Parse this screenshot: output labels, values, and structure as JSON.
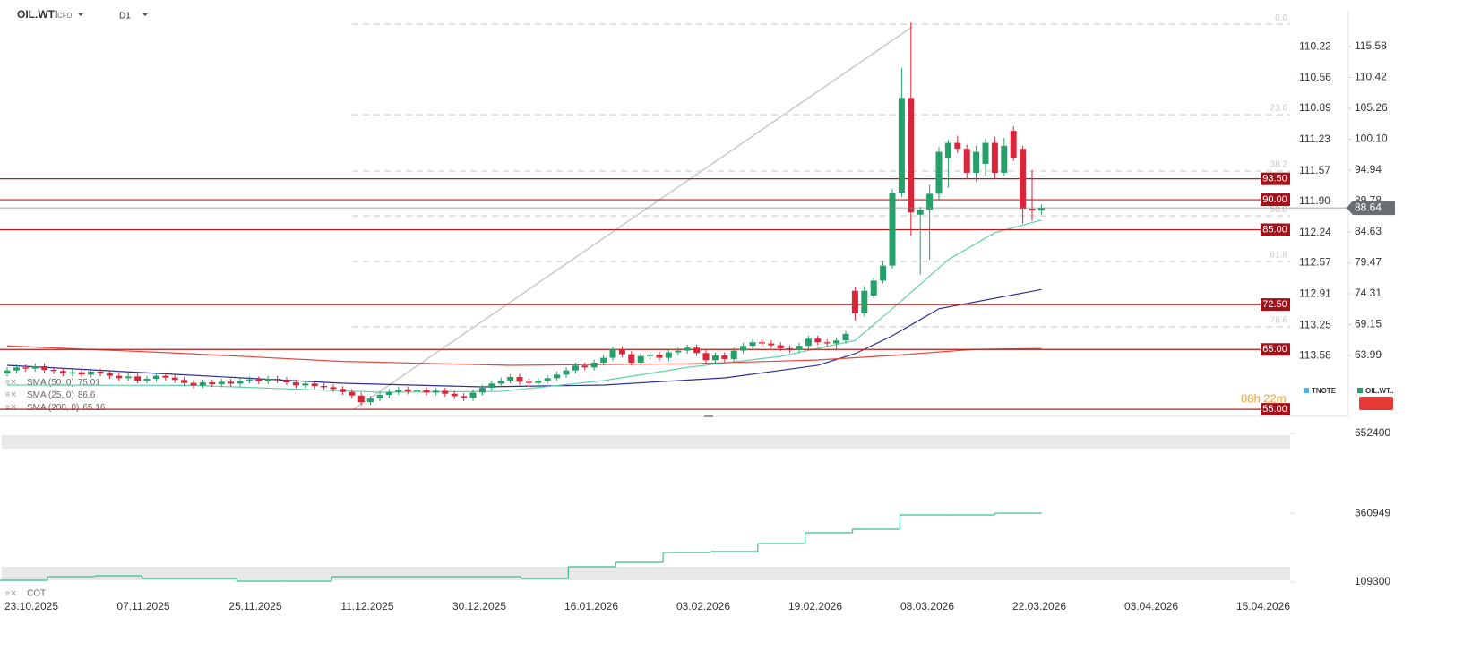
{
  "header": {
    "symbol": "OIL.WTI",
    "market": "CFD",
    "timeframe": "D1"
  },
  "chart_data": [
    {
      "type": "candlestick",
      "x_labels": [
        "23.10.2025",
        "07.11.2025",
        "25.11.2025",
        "11.12.2025",
        "30.12.2025",
        "16.01.2026",
        "03.02.2026",
        "19.02.2026",
        "08.03.2026",
        "22.03.2026",
        "03.04.2026",
        "15.04.2026"
      ],
      "up_color": "#26a069",
      "down_color": "#d9263a",
      "candles": [
        [
          61.0,
          62.0,
          60.5,
          61.5
        ],
        [
          61.5,
          62.5,
          61.0,
          62.0
        ],
        [
          62.0,
          62.5,
          61.3,
          61.8
        ],
        [
          61.8,
          62.7,
          61.3,
          62.2
        ],
        [
          62.2,
          62.7,
          61.1,
          61.6
        ],
        [
          61.6,
          62.1,
          60.9,
          61.4
        ],
        [
          61.4,
          61.9,
          60.5,
          61.0
        ],
        [
          61.0,
          61.7,
          60.5,
          61.2
        ],
        [
          61.2,
          61.7,
          60.3,
          60.8
        ],
        [
          60.8,
          61.8,
          60.3,
          61.3
        ],
        [
          61.3,
          61.8,
          60.5,
          61.0
        ],
        [
          61.0,
          61.5,
          60.1,
          60.6
        ],
        [
          60.6,
          61.1,
          59.7,
          60.2
        ],
        [
          60.2,
          61.0,
          59.7,
          60.5
        ],
        [
          60.5,
          61.0,
          59.3,
          59.8
        ],
        [
          59.8,
          60.6,
          59.3,
          60.1
        ],
        [
          60.1,
          61.1,
          59.6,
          60.6
        ],
        [
          60.6,
          61.1,
          59.8,
          60.3
        ],
        [
          60.3,
          60.8,
          59.4,
          59.9
        ],
        [
          59.9,
          60.4,
          58.9,
          59.4
        ],
        [
          59.4,
          59.9,
          58.5,
          59.0
        ],
        [
          59.0,
          60.0,
          58.5,
          59.5
        ],
        [
          59.5,
          60.0,
          58.7,
          59.2
        ],
        [
          59.2,
          60.1,
          58.7,
          59.6
        ],
        [
          59.6,
          60.1,
          58.8,
          59.3
        ],
        [
          59.3,
          60.3,
          58.8,
          59.8
        ],
        [
          59.8,
          60.5,
          59.3,
          60.0
        ],
        [
          60.0,
          60.5,
          59.2,
          59.7
        ],
        [
          59.7,
          60.6,
          59.2,
          60.1
        ],
        [
          60.1,
          60.6,
          59.4,
          59.9
        ],
        [
          59.9,
          60.4,
          59.0,
          59.5
        ],
        [
          59.5,
          60.0,
          58.5,
          59.0
        ],
        [
          59.0,
          59.8,
          58.5,
          59.3
        ],
        [
          59.3,
          59.8,
          58.4,
          58.9
        ],
        [
          58.9,
          59.4,
          58.2,
          58.7
        ],
        [
          58.7,
          59.2,
          57.9,
          58.4
        ],
        [
          58.4,
          58.9,
          57.4,
          57.9
        ],
        [
          57.9,
          58.4,
          56.8,
          57.3
        ],
        [
          57.3,
          57.8,
          55.7,
          56.2
        ],
        [
          56.2,
          57.3,
          55.7,
          56.8
        ],
        [
          56.8,
          57.9,
          56.3,
          57.4
        ],
        [
          57.4,
          58.4,
          56.9,
          57.9
        ],
        [
          57.9,
          58.8,
          57.4,
          58.3
        ],
        [
          58.3,
          58.8,
          57.5,
          58.0
        ],
        [
          58.0,
          58.7,
          57.5,
          58.2
        ],
        [
          58.2,
          58.7,
          57.3,
          57.8
        ],
        [
          57.8,
          58.6,
          57.3,
          58.1
        ],
        [
          58.1,
          58.6,
          57.1,
          57.6
        ],
        [
          57.6,
          58.1,
          56.7,
          57.2
        ],
        [
          57.2,
          57.7,
          56.4,
          56.9
        ],
        [
          56.9,
          58.3,
          56.4,
          57.8
        ],
        [
          57.8,
          59.1,
          57.3,
          58.6
        ],
        [
          58.6,
          59.8,
          58.1,
          59.3
        ],
        [
          59.3,
          60.3,
          58.8,
          59.8
        ],
        [
          59.8,
          60.9,
          59.3,
          60.4
        ],
        [
          60.4,
          60.9,
          59.1,
          59.6
        ],
        [
          59.6,
          60.1,
          58.9,
          59.4
        ],
        [
          59.4,
          60.3,
          58.9,
          59.8
        ],
        [
          59.8,
          60.7,
          59.3,
          60.2
        ],
        [
          60.2,
          61.3,
          59.7,
          60.8
        ],
        [
          60.8,
          62.0,
          60.3,
          61.5
        ],
        [
          61.5,
          62.8,
          61.0,
          62.3
        ],
        [
          62.3,
          62.8,
          61.5,
          62.0
        ],
        [
          62.0,
          63.3,
          61.5,
          62.8
        ],
        [
          62.8,
          64.1,
          62.3,
          63.6
        ],
        [
          63.6,
          65.5,
          63.1,
          65.0
        ],
        [
          65.0,
          65.5,
          63.7,
          64.2
        ],
        [
          64.2,
          64.7,
          62.3,
          62.8
        ],
        [
          62.8,
          64.4,
          62.3,
          63.9
        ],
        [
          63.9,
          64.6,
          63.4,
          64.1
        ],
        [
          64.1,
          64.6,
          63.1,
          63.6
        ],
        [
          63.6,
          65.0,
          63.1,
          64.5
        ],
        [
          64.5,
          65.3,
          64.0,
          64.8
        ],
        [
          64.8,
          65.8,
          64.3,
          65.3
        ],
        [
          65.3,
          65.8,
          63.9,
          64.4
        ],
        [
          64.4,
          64.9,
          62.7,
          63.2
        ],
        [
          63.2,
          64.5,
          62.7,
          64.0
        ],
        [
          64.0,
          64.5,
          62.9,
          63.4
        ],
        [
          63.4,
          65.3,
          62.9,
          64.8
        ],
        [
          64.8,
          66.1,
          64.3,
          65.6
        ],
        [
          65.6,
          66.7,
          65.1,
          66.2
        ],
        [
          66.2,
          66.7,
          65.5,
          66.0
        ],
        [
          66.0,
          66.5,
          65.2,
          65.7
        ],
        [
          65.7,
          66.2,
          64.7,
          65.2
        ],
        [
          65.2,
          65.7,
          64.4,
          64.9
        ],
        [
          64.9,
          66.1,
          64.4,
          65.6
        ],
        [
          65.6,
          67.3,
          65.1,
          66.8
        ],
        [
          66.8,
          67.3,
          65.7,
          66.2
        ],
        [
          66.2,
          66.7,
          65.5,
          66.0
        ],
        [
          66.0,
          67.0,
          64.8,
          66.5
        ],
        [
          66.5,
          68.1,
          66.0,
          67.6
        ],
        [
          74.8,
          75.5,
          69.8,
          71.0
        ],
        [
          71.0,
          75.6,
          70.5,
          74.8
        ],
        [
          74.0,
          77.0,
          73.5,
          76.5
        ],
        [
          76.5,
          79.8,
          76.0,
          79.0
        ],
        [
          79.0,
          91.8,
          78.5,
          91.2
        ],
        [
          91.2,
          112.0,
          90.5,
          107.0
        ],
        [
          107.0,
          119.6,
          84.0,
          87.9
        ],
        [
          87.5,
          88.8,
          77.5,
          88.3
        ],
        [
          88.3,
          92.5,
          80.0,
          91.0
        ],
        [
          91.0,
          98.8,
          90.0,
          98.0
        ],
        [
          97.0,
          100.0,
          92.0,
          99.5
        ],
        [
          99.5,
          100.7,
          97.8,
          98.5
        ],
        [
          98.5,
          99.2,
          93.5,
          94.5
        ],
        [
          94.5,
          99.0,
          93.0,
          98.0
        ],
        [
          96.0,
          100.2,
          94.0,
          99.5
        ],
        [
          99.5,
          100.5,
          93.5,
          94.5
        ],
        [
          94.5,
          100.3,
          94.0,
          99.0
        ],
        [
          101.5,
          102.3,
          96.5,
          97.0
        ],
        [
          98.5,
          99.0,
          86.0,
          88.5
        ],
        [
          88.5,
          95.0,
          86.5,
          88.2
        ],
        [
          88.2,
          89.2,
          87.5,
          88.64
        ]
      ],
      "ylim": [
        54.27,
        121.86
      ],
      "yticks": [
        63.99,
        69.15,
        74.31,
        79.47,
        84.63,
        89.78,
        94.94,
        {
          "value": 100.1,
          "label": "100.10"
        },
        105.26,
        110.42,
        115.58
      ],
      "y2lim": [
        114.21,
        109.81
      ],
      "y2ticks": [
        110.22,
        110.56,
        110.89,
        111.23,
        111.57,
        {
          "value": 111.9,
          "label": "111.90"
        },
        112.24,
        112.57,
        112.91,
        113.25,
        113.58
      ],
      "series": [
        {
          "name": "SMA (50, 0)",
          "color": "#2b2f8f",
          "x": [
            0,
            18,
            36,
            51,
            64,
            77,
            87,
            91,
            95,
            100,
            111
          ],
          "values": [
            62.35,
            60.85,
            59.35,
            58.76,
            59.06,
            60.25,
            62.35,
            64.29,
            67.28,
            71.8,
            75.01
          ]
        },
        {
          "name": "SMA (25, 0)",
          "color": "#5fd0a8",
          "x": [
            0,
            20,
            40,
            53,
            64,
            73,
            83,
            91,
            95,
            101,
            106,
            111
          ],
          "values": [
            59.06,
            59.0,
            57.86,
            58.0,
            59.8,
            62.0,
            63.84,
            66.5,
            71.8,
            80.0,
            84.5,
            86.6
          ]
        },
        {
          "name": "SMA (200, 0)",
          "color": "#e0473f",
          "x": [
            0,
            18,
            36,
            54,
            73,
            87,
            95,
            104,
            111
          ],
          "values": [
            65.6,
            64.4,
            63.0,
            62.35,
            62.6,
            63.24,
            63.99,
            65.03,
            65.16
          ]
        }
      ],
      "levels": [
        {
          "value": 93.5,
          "label": "93.50"
        },
        {
          "value": 90,
          "label": "90.00"
        },
        {
          "value": 85,
          "label": "85.00"
        },
        {
          "value": 72.5,
          "label": "72.50"
        },
        {
          "value": 65,
          "label": "65.00"
        },
        {
          "value": 55,
          "label": "55.00"
        }
      ],
      "fibonacci": [
        {
          "value": 119.3,
          "label": "0.0"
        },
        {
          "value": 104.2,
          "label": "23.6"
        },
        {
          "value": 94.8,
          "label": "38.2"
        },
        {
          "value": 87.3,
          "label": "50.0"
        },
        {
          "value": 79.7,
          "label": "61.8"
        },
        {
          "value": 68.8,
          "label": "78.6"
        }
      ],
      "last_price": 88.64,
      "countdown": "08h 22m",
      "legend": [
        {
          "name": "TNOTE",
          "color": "#4fb3e8"
        },
        {
          "name": "OIL.WT..",
          "color": "#26a069"
        }
      ]
    },
    {
      "type": "line",
      "title": "COT",
      "color": "#3dbb8d",
      "values": [
        115800,
        128900,
        132200,
        122400,
        122400,
        112600,
        112600,
        128900,
        128900,
        128900,
        128900,
        122400,
        164900,
        181300,
        217300,
        220500,
        250000,
        289200,
        302300,
        354700,
        354700,
        360949
      ],
      "ylim": [
        86400,
        698200
      ],
      "yticks": [
        109300,
        360949,
        652400
      ]
    }
  ]
}
